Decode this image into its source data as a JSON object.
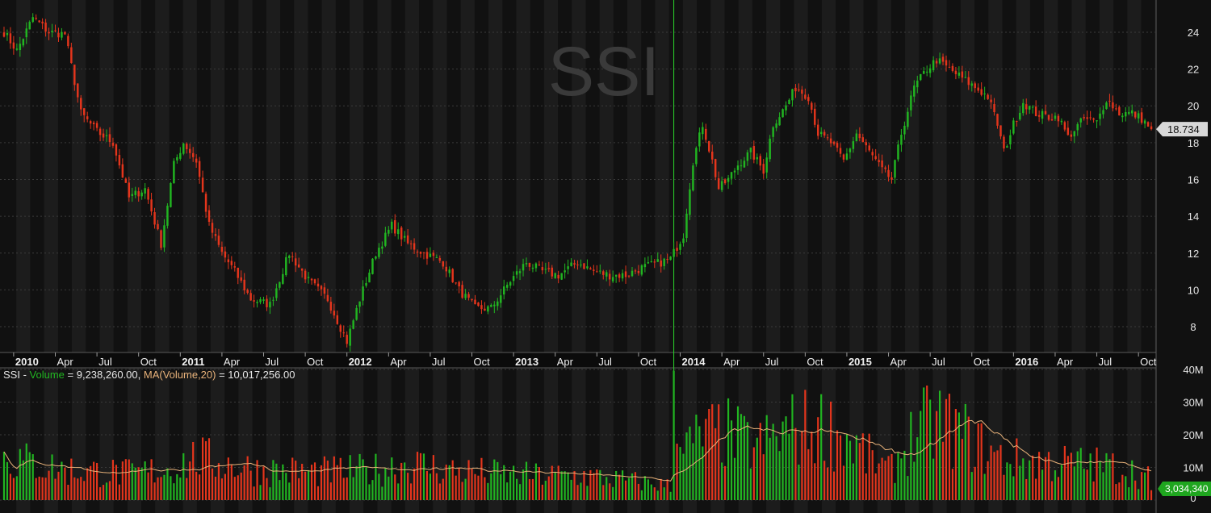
{
  "watermark": "SSI",
  "colors": {
    "background": "#111111",
    "column_alt": "#1c1c1c",
    "grid": "#3a3a3a",
    "up": "#21b521",
    "down": "#e4351c",
    "ma_line": "#e8b27a",
    "marker": "#2bd62b",
    "price_tag_bg": "#d8d8d8",
    "vol_tag_bg": "#1fa61f"
  },
  "chart_data": [
    {
      "type": "candlestick",
      "symbol": "SSI",
      "ylim": [
        6.6,
        25.4
      ],
      "y_ticks": [
        8,
        10,
        12,
        14,
        16,
        18,
        20,
        22,
        24
      ],
      "last_price_label": "18.734",
      "last_price": 18.734,
      "x_ticks": [
        {
          "label": "2010",
          "index": 3.5,
          "year": true
        },
        {
          "label": "Apr",
          "index": 16.5,
          "year": false
        },
        {
          "label": "Jul",
          "index": 29.5,
          "year": false
        },
        {
          "label": "Oct",
          "index": 42.5,
          "year": false
        },
        {
          "label": "2011",
          "index": 55.5,
          "year": true
        },
        {
          "label": "Apr",
          "index": 68.5,
          "year": false
        },
        {
          "label": "Jul",
          "index": 81.5,
          "year": false
        },
        {
          "label": "Oct",
          "index": 94.5,
          "year": false
        },
        {
          "label": "2012",
          "index": 107.5,
          "year": true
        },
        {
          "label": "Apr",
          "index": 120.5,
          "year": false
        },
        {
          "label": "Jul",
          "index": 133.5,
          "year": false
        },
        {
          "label": "Oct",
          "index": 146.5,
          "year": false
        },
        {
          "label": "2013",
          "index": 159.5,
          "year": true
        },
        {
          "label": "Apr",
          "index": 172.5,
          "year": false
        },
        {
          "label": "Jul",
          "index": 185.5,
          "year": false
        },
        {
          "label": "Oct",
          "index": 198.5,
          "year": false
        },
        {
          "label": "2014",
          "index": 211.5,
          "year": true
        },
        {
          "label": "Apr",
          "index": 224.5,
          "year": false
        },
        {
          "label": "Jul",
          "index": 237.5,
          "year": false
        },
        {
          "label": "Oct",
          "index": 250.5,
          "year": false
        },
        {
          "label": "2015",
          "index": 263.5,
          "year": true
        },
        {
          "label": "Apr",
          "index": 276.5,
          "year": false
        },
        {
          "label": "Jul",
          "index": 289.5,
          "year": false
        },
        {
          "label": "Oct",
          "index": 302.5,
          "year": false
        },
        {
          "label": "2016",
          "index": 315.5,
          "year": true
        },
        {
          "label": "Apr",
          "index": 328.5,
          "year": false
        },
        {
          "label": "Jul",
          "index": 341.5,
          "year": false
        },
        {
          "label": "Oct",
          "index": 354.5,
          "year": false
        }
      ],
      "marker_index": 209,
      "grid": true,
      "close_anchors": [
        [
          0,
          24.0
        ],
        [
          4,
          23.0
        ],
        [
          9,
          24.8
        ],
        [
          14,
          24.0
        ],
        [
          19,
          23.9
        ],
        [
          24,
          19.6
        ],
        [
          29,
          18.6
        ],
        [
          34,
          18.0
        ],
        [
          39,
          15.0
        ],
        [
          44,
          15.5
        ],
        [
          49,
          12.5
        ],
        [
          53,
          16.8
        ],
        [
          56,
          18.0
        ],
        [
          60,
          17.0
        ],
        [
          64,
          13.5
        ],
        [
          68,
          12.0
        ],
        [
          72,
          11.0
        ],
        [
          77,
          9.5
        ],
        [
          83,
          9.2
        ],
        [
          89,
          12.0
        ],
        [
          95,
          10.5
        ],
        [
          101,
          9.5
        ],
        [
          107,
          7.2
        ],
        [
          111,
          9.5
        ],
        [
          116,
          12.0
        ],
        [
          121,
          13.5
        ],
        [
          126,
          12.5
        ],
        [
          131,
          12.0
        ],
        [
          137,
          11.5
        ],
        [
          142,
          10.0
        ],
        [
          147,
          9.0
        ],
        [
          152,
          9.0
        ],
        [
          158,
          10.5
        ],
        [
          163,
          11.5
        ],
        [
          168,
          11.0
        ],
        [
          173,
          10.8
        ],
        [
          179,
          11.5
        ],
        [
          184,
          11.0
        ],
        [
          189,
          10.8
        ],
        [
          194,
          10.8
        ],
        [
          199,
          11.2
        ],
        [
          205,
          11.5
        ],
        [
          208,
          11.7
        ],
        [
          212,
          13.0
        ],
        [
          215,
          17.0
        ],
        [
          218,
          19.0
        ],
        [
          221,
          17.0
        ],
        [
          223,
          15.5
        ],
        [
          226,
          16.0
        ],
        [
          229,
          16.8
        ],
        [
          233,
          17.5
        ],
        [
          237,
          16.5
        ],
        [
          240,
          19.0
        ],
        [
          244,
          20.0
        ],
        [
          247,
          21.0
        ],
        [
          251,
          20.5
        ],
        [
          254,
          18.5
        ],
        [
          258,
          18.0
        ],
        [
          262,
          17.0
        ],
        [
          266,
          18.5
        ],
        [
          270,
          17.5
        ],
        [
          274,
          16.5
        ],
        [
          277,
          16.0
        ],
        [
          280,
          18.5
        ],
        [
          284,
          21.0
        ],
        [
          288,
          22.0
        ],
        [
          291,
          22.5
        ],
        [
          295,
          22.0
        ],
        [
          299,
          21.5
        ],
        [
          303,
          21.0
        ],
        [
          307,
          20.5
        ],
        [
          310,
          19.0
        ],
        [
          312,
          17.5
        ],
        [
          315,
          19.0
        ],
        [
          318,
          20.2
        ],
        [
          322,
          19.6
        ],
        [
          326,
          19.4
        ],
        [
          329,
          19.4
        ],
        [
          332,
          18.3
        ],
        [
          334,
          18.7
        ],
        [
          337,
          19.3
        ],
        [
          341,
          19.1
        ],
        [
          344,
          20.4
        ],
        [
          348,
          19.6
        ],
        [
          352,
          19.6
        ],
        [
          355,
          19.3
        ],
        [
          358,
          18.73
        ]
      ],
      "seed": 7,
      "volatility": 0.35
    },
    {
      "type": "bar",
      "title": "SSI",
      "series_label": "Volume",
      "value_label": "9,238,260.00",
      "ma_label": "MA(Volume,20)",
      "ma_value_label": "10,017,256.00",
      "ylim": [
        0,
        40000000
      ],
      "y_ticks": [
        {
          "label": "0",
          "value": 0
        },
        {
          "label": "10M",
          "value": 10000000
        },
        {
          "label": "20M",
          "value": 20000000
        },
        {
          "label": "30M",
          "value": 30000000
        },
        {
          "label": "40M",
          "value": 40000000
        }
      ],
      "last_volume_label": "3,034,340",
      "base_anchors": [
        [
          0,
          12000000
        ],
        [
          20,
          8500000
        ],
        [
          40,
          7500000
        ],
        [
          52,
          9000000
        ],
        [
          60,
          12000000
        ],
        [
          80,
          8500000
        ],
        [
          100,
          8000000
        ],
        [
          115,
          8500000
        ],
        [
          125,
          10500000
        ],
        [
          140,
          8500000
        ],
        [
          160,
          7000000
        ],
        [
          180,
          7000000
        ],
        [
          200,
          5000000
        ],
        [
          208,
          4000000
        ],
        [
          209,
          40000000
        ],
        [
          212,
          14000000
        ],
        [
          218,
          18000000
        ],
        [
          225,
          19000000
        ],
        [
          235,
          15000000
        ],
        [
          245,
          20000000
        ],
        [
          255,
          21000000
        ],
        [
          262,
          18000000
        ],
        [
          270,
          12000000
        ],
        [
          276,
          8000000
        ],
        [
          285,
          20000000
        ],
        [
          292,
          22000000
        ],
        [
          300,
          18000000
        ],
        [
          310,
          12000000
        ],
        [
          320,
          11000000
        ],
        [
          330,
          10500000
        ],
        [
          340,
          10000000
        ],
        [
          350,
          9000000
        ],
        [
          358,
          6000000
        ]
      ]
    }
  ]
}
